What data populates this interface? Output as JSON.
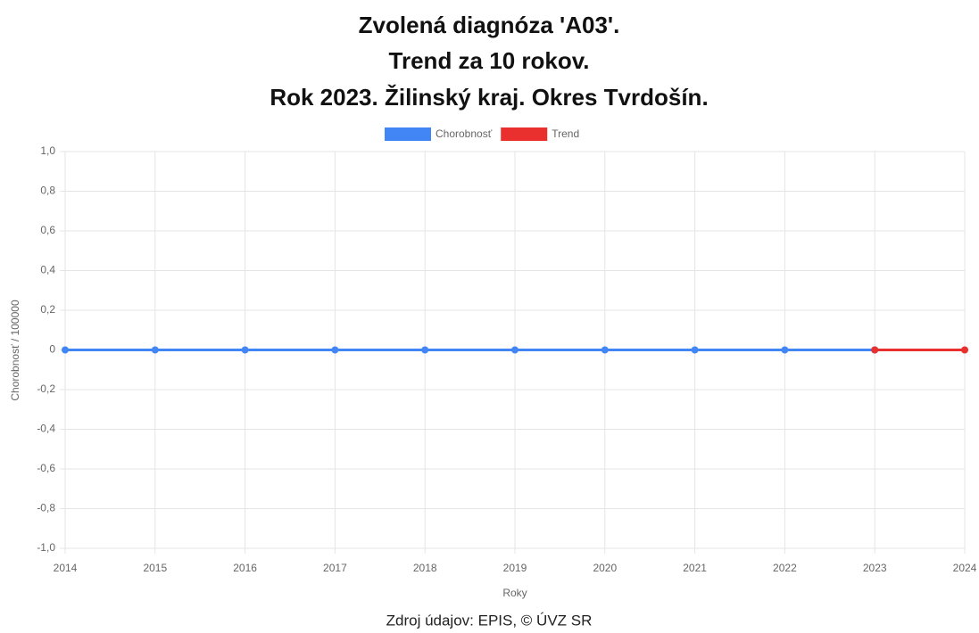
{
  "chart_data": {
    "type": "line",
    "title": [
      "Zvolená diagnóza 'A03'.",
      "Trend za 10 rokov.",
      "Rok 2023. Žilinský kraj. Okres Tvrdošín."
    ],
    "x": [
      2014,
      2015,
      2016,
      2017,
      2018,
      2019,
      2020,
      2021,
      2022,
      2023,
      2024
    ],
    "series": [
      {
        "name": "Chorobnosť",
        "color": "#4285f4",
        "values": [
          0,
          0,
          0,
          0,
          0,
          0,
          0,
          0,
          0,
          0,
          null
        ]
      },
      {
        "name": "Trend",
        "color": "#ea2f2f",
        "values": [
          null,
          null,
          null,
          null,
          null,
          null,
          null,
          null,
          null,
          0,
          0
        ]
      }
    ],
    "xlim": [
      2014,
      2024
    ],
    "xticks": [
      2014,
      2015,
      2016,
      2017,
      2018,
      2019,
      2020,
      2021,
      2022,
      2023,
      2024
    ],
    "ylim": [
      -1,
      1
    ],
    "yticks": [
      {
        "value": -1,
        "label": "-1,0"
      },
      {
        "value": -0.8,
        "label": "-0,8"
      },
      {
        "value": -0.6,
        "label": "-0,6"
      },
      {
        "value": -0.4,
        "label": "-0,4"
      },
      {
        "value": -0.2,
        "label": "-0,2"
      },
      0,
      {
        "value": 0.2,
        "label": "0,2"
      },
      {
        "value": 0.4,
        "label": "0,4"
      },
      {
        "value": 0.6,
        "label": "0,6"
      },
      {
        "value": 0.8,
        "label": "0,8"
      },
      {
        "value": 1,
        "label": "1,0"
      }
    ],
    "xlabel": "Roky",
    "ylabel": "Chorobnosť / 100000",
    "source": "Zdroj údajov: EPIS, © ÚVZ SR",
    "grid": true,
    "legend": "top"
  }
}
